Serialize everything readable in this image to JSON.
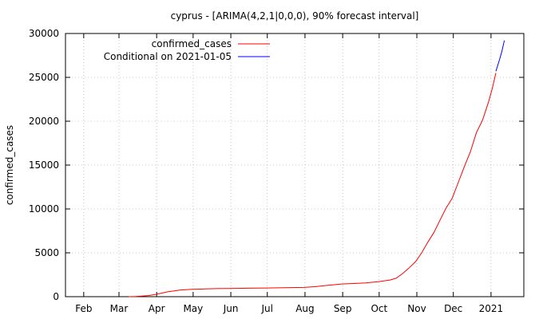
{
  "chart_data": {
    "type": "line",
    "title": "cyprus -  [ARIMA(4,2,1|0,0,0), 90% forecast interval]",
    "xlabel": "",
    "ylabel": "confirmed_cases",
    "ylim": [
      0,
      30000
    ],
    "yticks": [
      0,
      5000,
      10000,
      15000,
      20000,
      25000,
      30000
    ],
    "xlim": [
      "2020-01-17",
      "2021-01-28"
    ],
    "xticks": [
      {
        "date": "2020-02-01",
        "label": "Feb"
      },
      {
        "date": "2020-03-01",
        "label": "Mar"
      },
      {
        "date": "2020-04-01",
        "label": "Apr"
      },
      {
        "date": "2020-05-01",
        "label": "May"
      },
      {
        "date": "2020-06-01",
        "label": "Jun"
      },
      {
        "date": "2020-07-01",
        "label": "Jul"
      },
      {
        "date": "2020-08-01",
        "label": "Aug"
      },
      {
        "date": "2020-09-01",
        "label": "Sep"
      },
      {
        "date": "2020-10-01",
        "label": "Oct"
      },
      {
        "date": "2020-11-01",
        "label": "Nov"
      },
      {
        "date": "2020-12-01",
        "label": "Dec"
      },
      {
        "date": "2021-01-01",
        "label": "2021"
      }
    ],
    "grid": true,
    "legend_position": "top-right",
    "series": [
      {
        "name": "confirmed_cases",
        "color": "#ff0000",
        "points": [
          [
            "2020-03-09",
            0
          ],
          [
            "2020-03-15",
            30
          ],
          [
            "2020-03-20",
            70
          ],
          [
            "2020-03-25",
            130
          ],
          [
            "2020-03-31",
            250
          ],
          [
            "2020-04-05",
            400
          ],
          [
            "2020-04-10",
            550
          ],
          [
            "2020-04-15",
            650
          ],
          [
            "2020-04-20",
            750
          ],
          [
            "2020-04-25",
            800
          ],
          [
            "2020-04-30",
            840
          ],
          [
            "2020-05-10",
            880
          ],
          [
            "2020-05-20",
            920
          ],
          [
            "2020-05-31",
            940
          ],
          [
            "2020-06-15",
            960
          ],
          [
            "2020-06-30",
            990
          ],
          [
            "2020-07-15",
            1020
          ],
          [
            "2020-07-31",
            1050
          ],
          [
            "2020-08-10",
            1150
          ],
          [
            "2020-08-20",
            1300
          ],
          [
            "2020-08-31",
            1450
          ],
          [
            "2020-09-10",
            1500
          ],
          [
            "2020-09-20",
            1560
          ],
          [
            "2020-09-30",
            1700
          ],
          [
            "2020-10-10",
            1900
          ],
          [
            "2020-10-15",
            2100
          ],
          [
            "2020-10-20",
            2600
          ],
          [
            "2020-10-25",
            3200
          ],
          [
            "2020-10-31",
            4000
          ],
          [
            "2020-11-05",
            5000
          ],
          [
            "2020-11-10",
            6200
          ],
          [
            "2020-11-15",
            7300
          ],
          [
            "2020-11-20",
            8700
          ],
          [
            "2020-11-25",
            10100
          ],
          [
            "2020-11-30",
            11200
          ],
          [
            "2020-12-05",
            13000
          ],
          [
            "2020-12-10",
            14800
          ],
          [
            "2020-12-15",
            16500
          ],
          [
            "2020-12-20",
            18700
          ],
          [
            "2020-12-25",
            20100
          ],
          [
            "2020-12-30",
            22200
          ],
          [
            "2021-01-02",
            23700
          ],
          [
            "2021-01-05",
            25500
          ]
        ]
      },
      {
        "name": "Conditional on 2021-01-05",
        "color": "#0000ff",
        "points": [
          [
            "2021-01-05",
            25700
          ],
          [
            "2021-01-08",
            27000
          ],
          [
            "2021-01-10",
            28000
          ],
          [
            "2021-01-12",
            29200
          ]
        ]
      }
    ]
  }
}
